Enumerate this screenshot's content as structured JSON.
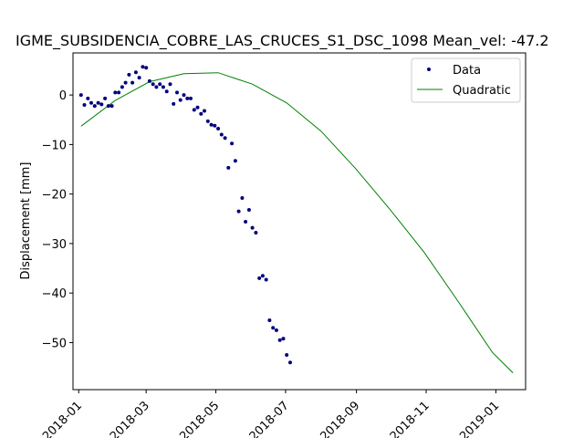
{
  "chart_data": {
    "type": "scatter",
    "title": "IGME_SUBSIDENCIA_COBRE_LAS_CRUCES_S1_DSC_1098     Mean_vel: -47.2",
    "xlabel": "",
    "ylabel": "Displacement [mm]",
    "x_range": [
      "2017-12-27",
      "2019-01-27"
    ],
    "ylim": [
      -59.5,
      8.5
    ],
    "x_ticks": [
      "2018-01",
      "2018-03",
      "2018-05",
      "2018-07",
      "2018-09",
      "2018-11",
      "2019-01"
    ],
    "y_ticks": [
      0,
      -10,
      -20,
      -30,
      -40,
      -50
    ],
    "grid": false,
    "legend_position": "top-right",
    "colors": {
      "data": "#00007f",
      "fit": "#008000"
    },
    "series": [
      {
        "name": "Data",
        "style": "points",
        "points": [
          [
            "2018-01-03",
            0.0
          ],
          [
            "2018-01-06",
            -2.0
          ],
          [
            "2018-01-09",
            -0.7
          ],
          [
            "2018-01-12",
            -1.6
          ],
          [
            "2018-01-15",
            -2.2
          ],
          [
            "2018-01-18",
            -1.6
          ],
          [
            "2018-01-21",
            -1.9
          ],
          [
            "2018-01-24",
            -0.7
          ],
          [
            "2018-01-27",
            -2.2
          ],
          [
            "2018-01-30",
            -2.2
          ],
          [
            "2018-02-02",
            0.5
          ],
          [
            "2018-02-05",
            0.5
          ],
          [
            "2018-02-08",
            1.6
          ],
          [
            "2018-02-11",
            2.5
          ],
          [
            "2018-02-14",
            4.1
          ],
          [
            "2018-02-17",
            2.5
          ],
          [
            "2018-02-20",
            4.6
          ],
          [
            "2018-02-23",
            3.5
          ],
          [
            "2018-02-26",
            5.7
          ],
          [
            "2018-03-01",
            5.5
          ],
          [
            "2018-03-04",
            2.8
          ],
          [
            "2018-03-07",
            2.2
          ],
          [
            "2018-03-10",
            1.6
          ],
          [
            "2018-03-13",
            2.2
          ],
          [
            "2018-03-16",
            1.6
          ],
          [
            "2018-03-19",
            0.7
          ],
          [
            "2018-03-22",
            2.2
          ],
          [
            "2018-03-25",
            -1.8
          ],
          [
            "2018-03-28",
            0.5
          ],
          [
            "2018-03-31",
            -1.0
          ],
          [
            "2018-04-03",
            0.0
          ],
          [
            "2018-04-06",
            -0.7
          ],
          [
            "2018-04-09",
            -0.7
          ],
          [
            "2018-04-12",
            -3.0
          ],
          [
            "2018-04-15",
            -2.5
          ],
          [
            "2018-04-18",
            -3.8
          ],
          [
            "2018-04-21",
            -3.2
          ],
          [
            "2018-04-24",
            -5.3
          ],
          [
            "2018-04-27",
            -6.0
          ],
          [
            "2018-04-30",
            -6.2
          ],
          [
            "2018-05-03",
            -6.8
          ],
          [
            "2018-05-06",
            -8.0
          ],
          [
            "2018-05-09",
            -8.7
          ],
          [
            "2018-05-12",
            -14.7
          ],
          [
            "2018-05-15",
            -9.8
          ],
          [
            "2018-05-18",
            -13.3
          ],
          [
            "2018-05-21",
            -23.5
          ],
          [
            "2018-05-24",
            -20.8
          ],
          [
            "2018-05-27",
            -25.6
          ],
          [
            "2018-05-30",
            -23.2
          ],
          [
            "2018-06-02",
            -26.8
          ],
          [
            "2018-06-05",
            -27.8
          ],
          [
            "2018-06-08",
            -37.0
          ],
          [
            "2018-06-11",
            -36.5
          ],
          [
            "2018-06-14",
            -37.3
          ],
          [
            "2018-06-17",
            -45.5
          ],
          [
            "2018-06-20",
            -47.0
          ],
          [
            "2018-06-23",
            -47.5
          ],
          [
            "2018-06-26",
            -49.5
          ],
          [
            "2018-06-29",
            -49.2
          ],
          [
            "2018-07-02",
            -52.5
          ],
          [
            "2018-07-05",
            -54.0
          ]
        ]
      },
      {
        "name": "Quadratic",
        "style": "line",
        "points": [
          [
            "2018-01-03",
            -6.3
          ],
          [
            "2018-02-02",
            -1.1
          ],
          [
            "2018-03-04",
            2.7
          ],
          [
            "2018-04-03",
            4.3
          ],
          [
            "2018-05-03",
            4.5
          ],
          [
            "2018-06-02",
            2.2
          ],
          [
            "2018-07-02",
            -1.6
          ],
          [
            "2018-08-01",
            -7.3
          ],
          [
            "2018-08-31",
            -14.8
          ],
          [
            "2018-09-30",
            -23.0
          ],
          [
            "2018-10-30",
            -31.7
          ],
          [
            "2018-11-29",
            -41.7
          ],
          [
            "2018-12-29",
            -52.0
          ],
          [
            "2019-01-16",
            -56.1
          ]
        ]
      }
    ]
  }
}
